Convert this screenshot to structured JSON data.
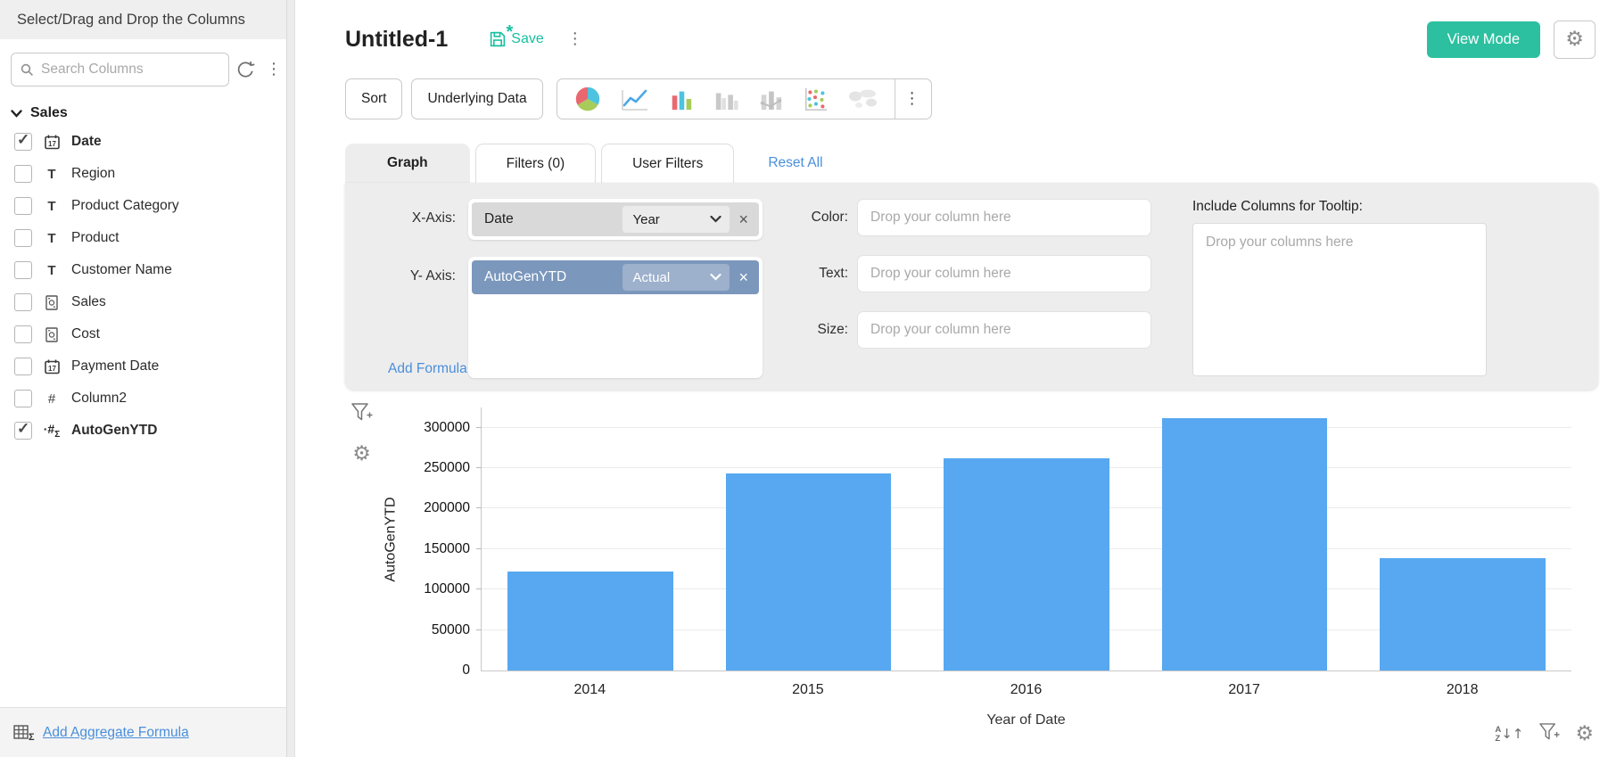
{
  "sidebar": {
    "title": "Select/Drag and Drop the Columns",
    "search_placeholder": "Search Columns",
    "group_label": "Sales",
    "items": [
      {
        "label": "Date",
        "type": "date",
        "checked": true
      },
      {
        "label": "Region",
        "type": "text",
        "checked": false
      },
      {
        "label": "Product Category",
        "type": "text",
        "checked": false
      },
      {
        "label": "Product",
        "type": "text",
        "checked": false
      },
      {
        "label": "Customer Name",
        "type": "text",
        "checked": false
      },
      {
        "label": "Sales",
        "type": "currency",
        "checked": false
      },
      {
        "label": "Cost",
        "type": "currency",
        "checked": false
      },
      {
        "label": "Payment Date",
        "type": "date",
        "checked": false
      },
      {
        "label": "Column2",
        "type": "number",
        "checked": false
      },
      {
        "label": "AutoGenYTD",
        "type": "formula",
        "checked": true
      }
    ],
    "footer_link": "Add Aggregate Formula"
  },
  "header": {
    "title": "Untitled-1",
    "save_label": "Save",
    "view_mode_label": "View Mode"
  },
  "toolbar": {
    "sort_label": "Sort",
    "underlying_data_label": "Underlying Data",
    "chart_types": [
      "pie-chart",
      "line-chart",
      "bar-chart",
      "grouped-bar-chart",
      "bar-line-chart",
      "scatter-chart",
      "map-chart"
    ]
  },
  "tabs": {
    "graph": "Graph",
    "filters": "Filters  (0)",
    "user_filters": "User Filters",
    "reset_all": "Reset All"
  },
  "config": {
    "x_axis_label": "X-Axis:",
    "x_column": "Date",
    "x_function": "Year",
    "y_axis_label": "Y- Axis:",
    "y_column": "AutoGenYTD",
    "y_function": "Actual",
    "add_formula_label": "Add Formula",
    "color_label": "Color:",
    "text_label": "Text:",
    "size_label": "Size:",
    "drop_placeholder": "Drop your column here",
    "tooltip_label": "Include Columns for Tooltip:",
    "tooltip_placeholder": "Drop your columns here"
  },
  "chart_data": {
    "type": "bar",
    "categories": [
      "2014",
      "2015",
      "2016",
      "2017",
      "2018"
    ],
    "values": [
      122000,
      243000,
      262000,
      312000,
      139000
    ],
    "title": "",
    "xlabel": "Year of Date",
    "ylabel": "AutoGenYTD",
    "yticks": [
      0,
      50000,
      100000,
      150000,
      200000,
      250000,
      300000
    ],
    "ylim": [
      0,
      325000
    ],
    "bar_color": "#57a8f1",
    "grid": true,
    "legend": false
  },
  "colors": {
    "accent_teal": "#2cc0a0",
    "link_blue": "#4a8fdb",
    "bar_blue": "#57a8f1",
    "y_chip_blue": "#7b97bc",
    "panel_grey": "#ededed"
  },
  "icons": {
    "search": "magnifier-svg",
    "refresh": "circular-arrow-svg",
    "kebab": "⋮",
    "gear": "⚙",
    "chevron_down": "v-svg",
    "check": "✓",
    "close": "×",
    "text_type": "T",
    "number_type": "#",
    "formula_type": "·#",
    "formula_type_sub": "Σ",
    "save_new_indicator": "*",
    "sort_letters_a": "A",
    "sort_letters_z": "Z",
    "sort_arrow_down": "↓",
    "sort_arrow_up": "↑",
    "aggregate_sigma": "Σ"
  }
}
